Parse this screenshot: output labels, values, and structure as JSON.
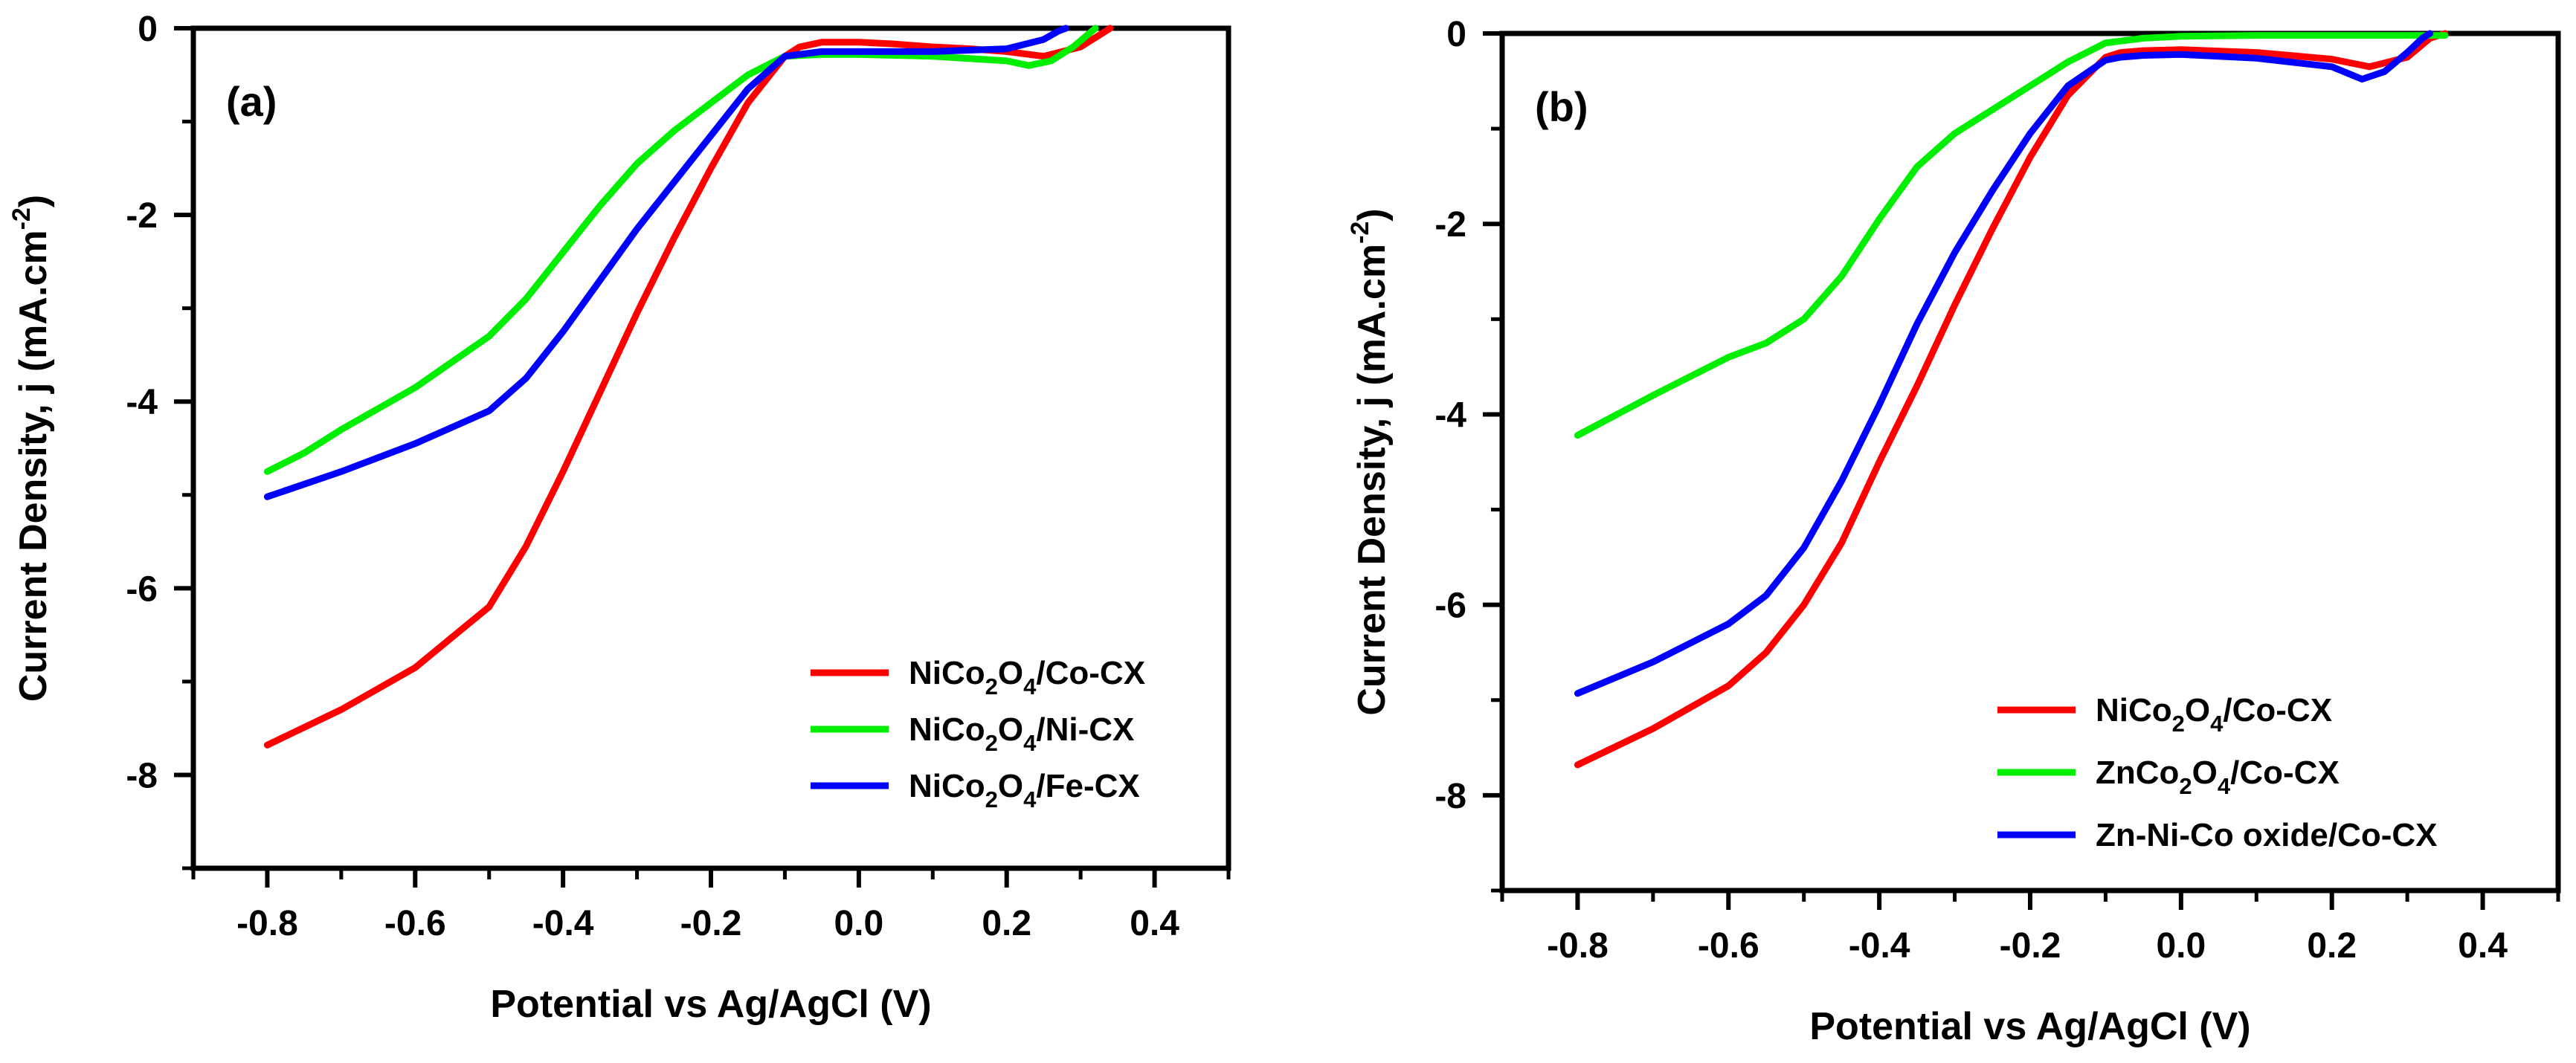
{
  "chart_data": [
    {
      "type": "line",
      "panel_label": "(a)",
      "xlabel": "Potential vs Ag/AgCl (V)",
      "ylabel": "Current Density, j (mA.cm",
      "ylabel_sup": "-2",
      "ylabel_end": ")",
      "xlim": [
        -0.9,
        0.5
      ],
      "ylim": [
        -9,
        0
      ],
      "xticks": [
        -0.8,
        -0.6,
        -0.4,
        -0.2,
        0.0,
        0.2,
        0.4
      ],
      "xtick_labels": [
        "-0.8",
        "-0.6",
        "-0.4",
        "-0.2",
        "0.0",
        "0.2",
        "0.4"
      ],
      "yticks": [
        0,
        -2,
        -4,
        -6,
        -8
      ],
      "ytick_labels": [
        "0",
        "-2",
        "-4",
        "-6",
        "-8"
      ],
      "grid": false,
      "legend_position": "bottom-right",
      "series": [
        {
          "name": "NiCo2O4/Co-CX",
          "legend": [
            [
              "NiCo",
              ""
            ],
            [
              "2",
              "sub"
            ],
            [
              "O",
              ""
            ],
            [
              "4",
              "sub"
            ],
            [
              "/Co-CX",
              ""
            ]
          ],
          "color": "#ff0000",
          "x": [
            -0.8,
            -0.7,
            -0.6,
            -0.5,
            -0.45,
            -0.4,
            -0.35,
            -0.3,
            -0.25,
            -0.2,
            -0.15,
            -0.1,
            -0.08,
            -0.05,
            0.0,
            0.05,
            0.1,
            0.15,
            0.2,
            0.25,
            0.3,
            0.33,
            0.34
          ],
          "y": [
            -7.68,
            -7.3,
            -6.85,
            -6.2,
            -5.55,
            -4.75,
            -3.9,
            -3.05,
            -2.25,
            -1.5,
            -0.8,
            -0.3,
            -0.2,
            -0.15,
            -0.15,
            -0.17,
            -0.2,
            -0.22,
            -0.25,
            -0.3,
            -0.2,
            -0.05,
            0.0
          ]
        },
        {
          "name": "NiCo2O4/Ni-CX",
          "legend": [
            [
              "NiCo",
              ""
            ],
            [
              "2",
              "sub"
            ],
            [
              "O",
              ""
            ],
            [
              "4",
              "sub"
            ],
            [
              "/Ni-CX",
              ""
            ]
          ],
          "color": "#00ee00",
          "x": [
            -0.8,
            -0.75,
            -0.7,
            -0.6,
            -0.5,
            -0.45,
            -0.4,
            -0.35,
            -0.3,
            -0.25,
            -0.2,
            -0.15,
            -0.1,
            -0.05,
            0.0,
            0.1,
            0.2,
            0.23,
            0.26,
            0.29,
            0.32
          ],
          "y": [
            -4.75,
            -4.55,
            -4.3,
            -3.85,
            -3.3,
            -2.9,
            -2.4,
            -1.9,
            -1.45,
            -1.1,
            -0.8,
            -0.5,
            -0.3,
            -0.28,
            -0.28,
            -0.3,
            -0.35,
            -0.4,
            -0.35,
            -0.2,
            0.0
          ]
        },
        {
          "name": "NiCo2O4/Fe-CX",
          "legend": [
            [
              "NiCo",
              ""
            ],
            [
              "2",
              "sub"
            ],
            [
              "O",
              ""
            ],
            [
              "4",
              "sub"
            ],
            [
              "/Fe-CX",
              ""
            ]
          ],
          "color": "#0000ff",
          "x": [
            -0.8,
            -0.7,
            -0.6,
            -0.5,
            -0.45,
            -0.4,
            -0.35,
            -0.3,
            -0.25,
            -0.2,
            -0.15,
            -0.1,
            -0.05,
            0.0,
            0.1,
            0.2,
            0.25,
            0.27,
            0.28
          ],
          "y": [
            -5.02,
            -4.75,
            -4.45,
            -4.1,
            -3.75,
            -3.25,
            -2.7,
            -2.15,
            -1.65,
            -1.15,
            -0.65,
            -0.3,
            -0.25,
            -0.25,
            -0.25,
            -0.22,
            -0.12,
            -0.03,
            0.0
          ]
        }
      ]
    },
    {
      "type": "line",
      "panel_label": "(b)",
      "xlabel": "Potential vs Ag/AgCl (V)",
      "ylabel": "Current Density, j (mA.cm",
      "ylabel_sup": "-2",
      "ylabel_end": ")",
      "xlim": [
        -0.9,
        0.5
      ],
      "ylim": [
        -9,
        0
      ],
      "xticks": [
        -0.8,
        -0.6,
        -0.4,
        -0.2,
        0.0,
        0.2,
        0.4
      ],
      "xtick_labels": [
        "-0.8",
        "-0.6",
        "-0.4",
        "-0.2",
        "0.0",
        "0.2",
        "0.4"
      ],
      "yticks": [
        0,
        -2,
        -4,
        -6,
        -8
      ],
      "ytick_labels": [
        "0",
        "-2",
        "-4",
        "-6",
        "-8"
      ],
      "grid": false,
      "legend_position": "bottom-right",
      "series": [
        {
          "name": "NiCo2O4/Co-CX",
          "legend": [
            [
              "NiCo",
              ""
            ],
            [
              "2",
              "sub"
            ],
            [
              "O",
              ""
            ],
            [
              "4",
              "sub"
            ],
            [
              "/Co-CX",
              ""
            ]
          ],
          "color": "#ff0000",
          "x": [
            -0.8,
            -0.7,
            -0.6,
            -0.55,
            -0.5,
            -0.45,
            -0.4,
            -0.35,
            -0.3,
            -0.25,
            -0.2,
            -0.15,
            -0.1,
            -0.08,
            -0.05,
            0.0,
            0.1,
            0.2,
            0.25,
            0.3,
            0.33,
            0.35
          ],
          "y": [
            -7.68,
            -7.3,
            -6.85,
            -6.5,
            -6.0,
            -5.35,
            -4.5,
            -3.7,
            -2.85,
            -2.05,
            -1.3,
            -0.65,
            -0.25,
            -0.2,
            -0.18,
            -0.17,
            -0.2,
            -0.27,
            -0.35,
            -0.25,
            -0.05,
            0.0
          ]
        },
        {
          "name": "ZnCo2O4/Co-CX",
          "legend": [
            [
              "ZnCo",
              ""
            ],
            [
              "2",
              "sub"
            ],
            [
              "O",
              ""
            ],
            [
              "4",
              "sub"
            ],
            [
              "/Co-CX",
              ""
            ]
          ],
          "color": "#00ee00",
          "x": [
            -0.8,
            -0.7,
            -0.6,
            -0.55,
            -0.5,
            -0.45,
            -0.4,
            -0.35,
            -0.3,
            -0.25,
            -0.2,
            -0.15,
            -0.1,
            -0.05,
            0.0,
            0.1,
            0.2,
            0.3,
            0.35
          ],
          "y": [
            -4.22,
            -3.8,
            -3.4,
            -3.25,
            -3.0,
            -2.55,
            -1.95,
            -1.4,
            -1.05,
            -0.8,
            -0.55,
            -0.3,
            -0.1,
            -0.05,
            -0.03,
            -0.02,
            -0.02,
            -0.02,
            -0.02
          ]
        },
        {
          "name": "Zn-Ni-Co oxide/Co-CX",
          "legend": [
            [
              "Zn-Ni-Co oxide/Co-CX",
              ""
            ]
          ],
          "color": "#0000ff",
          "x": [
            -0.8,
            -0.7,
            -0.6,
            -0.55,
            -0.5,
            -0.45,
            -0.4,
            -0.35,
            -0.3,
            -0.25,
            -0.2,
            -0.15,
            -0.1,
            -0.08,
            -0.05,
            0.0,
            0.1,
            0.2,
            0.24,
            0.27,
            0.3,
            0.32,
            0.33
          ],
          "y": [
            -6.93,
            -6.6,
            -6.2,
            -5.9,
            -5.4,
            -4.7,
            -3.9,
            -3.05,
            -2.3,
            -1.65,
            -1.05,
            -0.55,
            -0.28,
            -0.25,
            -0.23,
            -0.22,
            -0.26,
            -0.35,
            -0.48,
            -0.4,
            -0.2,
            -0.05,
            0.0
          ]
        }
      ]
    }
  ]
}
